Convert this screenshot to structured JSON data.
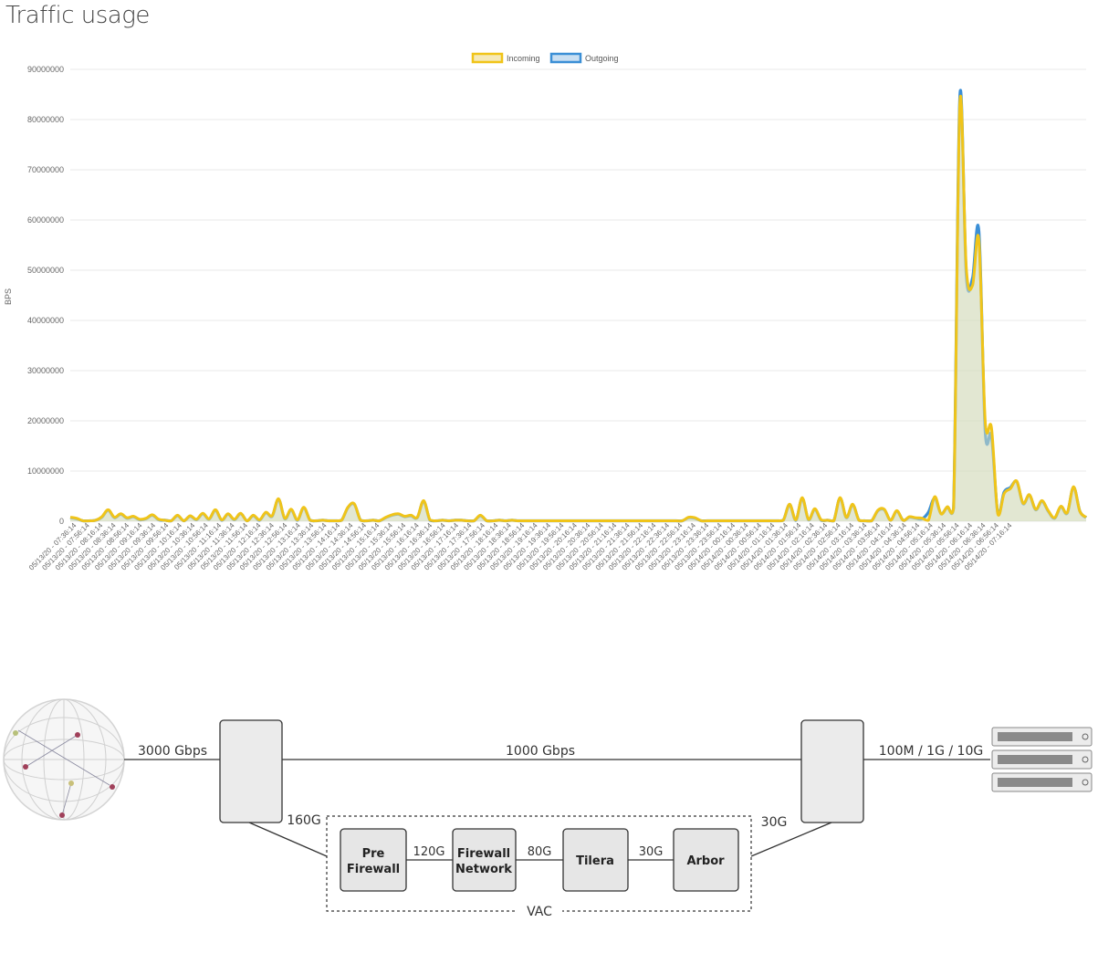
{
  "page": {
    "title": "Traffic usage"
  },
  "colors": {
    "incoming": "#f0c419",
    "outgoing": "#3b8fd6",
    "fill": "#d6dcc0",
    "grid": "#e8e8e8"
  },
  "chart_data": {
    "type": "area",
    "title": "",
    "ylabel": "BPS",
    "xlabel": "",
    "ylim": [
      0,
      90000000
    ],
    "yticks": [
      "0",
      "10000000",
      "20000000",
      "30000000",
      "40000000",
      "50000000",
      "60000000",
      "70000000",
      "80000000",
      "90000000"
    ],
    "legend": "top-center",
    "grid": true,
    "x_labels": [
      "05/13/20 - 07:36:14",
      "05/13/20 - 07:56:14",
      "05/13/20 - 08:16:14",
      "05/13/20 - 08:36:14",
      "05/13/20 - 08:56:14",
      "05/13/20 - 09:16:14",
      "05/13/20 - 09:36:14",
      "05/13/20 - 09:56:14",
      "05/13/20 - 10:16:14",
      "05/13/20 - 10:36:14",
      "05/13/20 - 10:56:14",
      "05/13/20 - 11:16:14",
      "05/13/20 - 11:36:14",
      "05/13/20 - 11:56:14",
      "05/13/20 - 12:16:14",
      "05/13/20 - 12:36:14",
      "05/13/20 - 12:56:14",
      "05/13/20 - 13:16:14",
      "05/13/20 - 13:36:14",
      "05/13/20 - 13:56:14",
      "05/13/20 - 14:16:14",
      "05/13/20 - 14:36:14",
      "05/13/20 - 14:56:14",
      "05/13/20 - 15:16:14",
      "05/13/20 - 15:36:14",
      "05/13/20 - 15:56:14",
      "05/13/20 - 16:16:14",
      "05/13/20 - 16:36:14",
      "05/13/20 - 16:56:14",
      "05/13/20 - 17:16:14",
      "05/13/20 - 17:36:14",
      "05/13/20 - 17:56:14",
      "05/13/20 - 18:16:14",
      "05/13/20 - 18:36:14",
      "05/13/20 - 18:56:14",
      "05/13/20 - 19:16:14",
      "05/13/20 - 19:36:14",
      "05/13/20 - 19:56:14",
      "05/13/20 - 20:16:14",
      "05/13/20 - 20:36:14",
      "05/13/20 - 20:56:14",
      "05/13/20 - 21:16:14",
      "05/13/20 - 21:36:14",
      "05/13/20 - 21:56:14",
      "05/13/20 - 22:16:14",
      "05/13/20 - 22:36:14",
      "05/13/20 - 22:56:14",
      "05/13/20 - 23:16:14",
      "05/13/20 - 23:36:14",
      "05/13/20 - 23:56:14",
      "05/14/20 - 00:16:14",
      "05/14/20 - 00:36:14",
      "05/14/20 - 00:56:14",
      "05/14/20 - 01:16:14",
      "05/14/20 - 01:36:14",
      "05/14/20 - 01:56:14",
      "05/14/20 - 02:16:14",
      "05/14/20 - 02:36:14",
      "05/14/20 - 02:56:14",
      "05/14/20 - 03:16:14",
      "05/14/20 - 03:36:14",
      "05/14/20 - 03:56:14",
      "05/14/20 - 04:16:14",
      "05/14/20 - 04:36:14",
      "05/14/20 - 04:56:14",
      "05/14/20 - 05:16:14",
      "05/14/20 - 05:36:14",
      "05/14/20 - 05:56:14",
      "05/14/20 - 06:16:14",
      "05/14/20 - 06:36:14",
      "05/14/20 - 06:56:14",
      "05/14/20 - 07:16:14"
    ],
    "series": [
      {
        "name": "Incoming",
        "color": "#f0c419",
        "values": [
          800000,
          600000,
          100000,
          100000,
          200000,
          900000,
          2300000,
          800000,
          1500000,
          700000,
          1000000,
          400000,
          600000,
          1300000,
          400000,
          200000,
          100000,
          1200000,
          100000,
          1100000,
          400000,
          1600000,
          500000,
          2300000,
          300000,
          1500000,
          400000,
          1600000,
          100000,
          1200000,
          300000,
          1800000,
          1100000,
          4500000,
          600000,
          2400000,
          300000,
          2800000,
          200000,
          100000,
          200000,
          100000,
          100000,
          200000,
          2800000,
          3500000,
          200000,
          100000,
          200000,
          100000,
          800000,
          1300000,
          1500000,
          1000000,
          1200000,
          800000,
          4100000,
          300000,
          100000,
          200000,
          100000,
          200000,
          200000,
          100000,
          100000,
          1200000,
          100000,
          100000,
          200000,
          100000,
          200000,
          100000,
          100000,
          100000,
          100000,
          100000,
          100000,
          100000,
          100000,
          100000,
          100000,
          100000,
          100000,
          100000,
          100000,
          100000,
          100000,
          100000,
          100000,
          100000,
          100000,
          100000,
          100000,
          100000,
          100000,
          100000,
          100000,
          100000,
          800000,
          700000,
          100000,
          100000,
          100000,
          100000,
          100000,
          100000,
          100000,
          100000,
          100000,
          100000,
          100000,
          100000,
          100000,
          200000,
          3400000,
          300000,
          4700000,
          400000,
          2500000,
          300000,
          200000,
          100000,
          4700000,
          800000,
          3400000,
          200000,
          100000,
          100000,
          2200000,
          2400000,
          200000,
          2100000,
          200000,
          900000,
          700000,
          600000,
          200000,
          4900000,
          1500000,
          2900000,
          2700000,
          83500000,
          50500000,
          47000000,
          56000000,
          20000000,
          18600000,
          1500000,
          5500000,
          6500000,
          8000000,
          3600000,
          5300000,
          2400000,
          4100000,
          2100000,
          700000,
          3000000,
          1700000,
          6900000,
          2000000,
          800000
        ]
      },
      {
        "name": "Outgoing",
        "color": "#3b8fd6",
        "values": [
          700000,
          500000,
          100000,
          100000,
          200000,
          800000,
          2200000,
          700000,
          1400000,
          600000,
          900000,
          300000,
          500000,
          1200000,
          300000,
          200000,
          100000,
          1100000,
          100000,
          1000000,
          300000,
          1500000,
          400000,
          2200000,
          200000,
          1400000,
          300000,
          1500000,
          100000,
          1100000,
          200000,
          1700000,
          1000000,
          4400000,
          500000,
          2300000,
          200000,
          2700000,
          200000,
          100000,
          200000,
          100000,
          100000,
          200000,
          2700000,
          3400000,
          200000,
          100000,
          200000,
          100000,
          700000,
          1200000,
          1400000,
          900000,
          1100000,
          700000,
          4000000,
          200000,
          100000,
          200000,
          100000,
          200000,
          200000,
          100000,
          100000,
          1100000,
          100000,
          100000,
          200000,
          100000,
          200000,
          100000,
          100000,
          100000,
          100000,
          100000,
          100000,
          100000,
          100000,
          100000,
          100000,
          100000,
          100000,
          100000,
          100000,
          100000,
          100000,
          100000,
          100000,
          100000,
          100000,
          100000,
          100000,
          100000,
          100000,
          100000,
          100000,
          100000,
          700000,
          600000,
          100000,
          100000,
          100000,
          100000,
          100000,
          100000,
          100000,
          100000,
          100000,
          100000,
          100000,
          100000,
          100000,
          200000,
          3300000,
          200000,
          4600000,
          300000,
          2400000,
          200000,
          200000,
          100000,
          4600000,
          700000,
          3300000,
          200000,
          100000,
          100000,
          2100000,
          2300000,
          200000,
          2000000,
          200000,
          800000,
          600000,
          500000,
          1800000,
          4600000,
          1500000,
          2800000,
          2600000,
          84800000,
          49000000,
          48500000,
          57800000,
          18000000,
          17000000,
          1600000,
          5800000,
          6700000,
          7900000,
          3500000,
          5200000,
          2300000,
          4000000,
          2000000,
          600000,
          2900000,
          1600000,
          6800000,
          2000000,
          700000
        ]
      }
    ]
  },
  "diagram": {
    "uplink_label": "3000 Gbps",
    "backbone_label": "1000 Gbps",
    "server_link_label": "100M / 1G / 10G",
    "left_to_vac_label": "160G",
    "vac_to_right_label": "30G",
    "vac_label": "VAC",
    "links": [
      "120G",
      "80G",
      "30G"
    ],
    "nodes": [
      {
        "line1": "Pre",
        "line2": "Firewall"
      },
      {
        "line1": "Firewall",
        "line2": "Network"
      },
      {
        "line1": "Tilera",
        "line2": ""
      },
      {
        "line1": "Arbor",
        "line2": ""
      }
    ]
  }
}
